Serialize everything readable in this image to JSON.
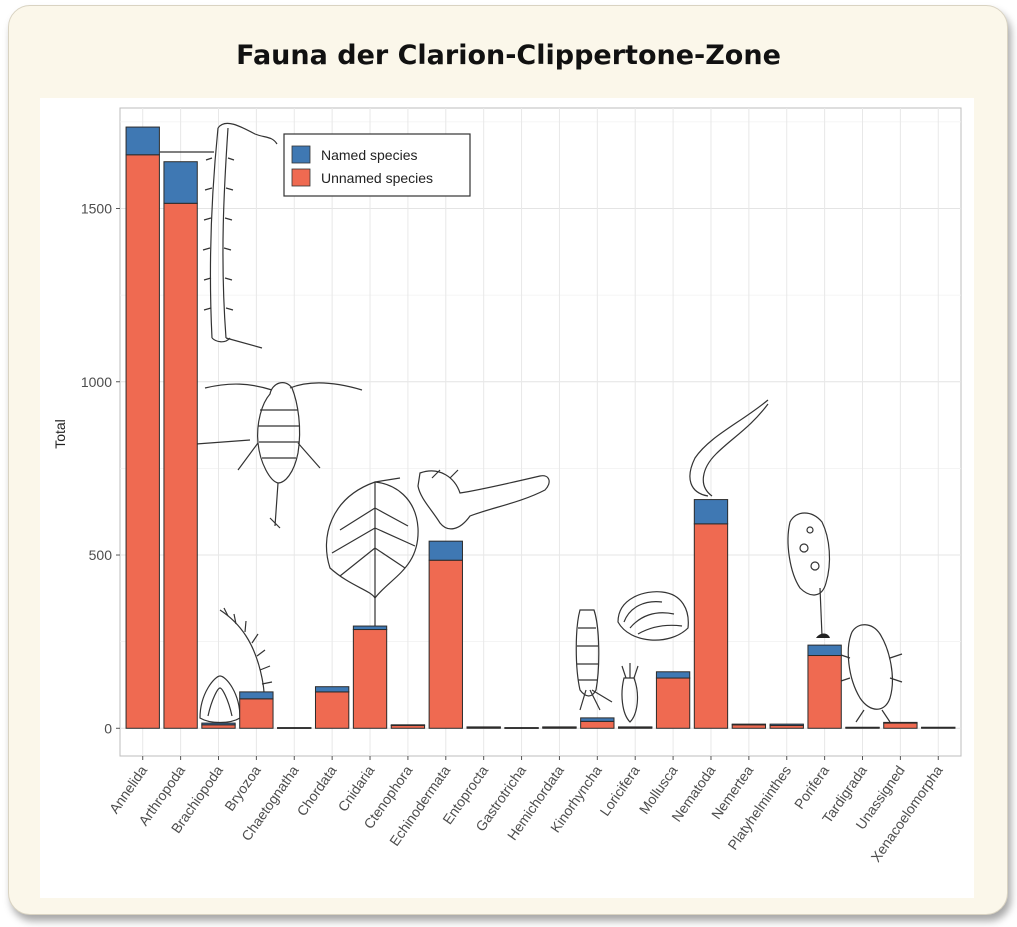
{
  "title": "Fauna der Clarion-Clippertone-Zone",
  "colors": {
    "named": "#3f78b3",
    "unnamed": "#ef6a51",
    "frame": "#fbf7ea"
  },
  "chart_data": {
    "type": "bar",
    "stacked": true,
    "categories": [
      "Annelida",
      "Arthropoda",
      "Brachiopoda",
      "Bryozoa",
      "Chaetognatha",
      "Chordata",
      "Cnidaria",
      "Ctenophora",
      "Echinodermata",
      "Entoprocta",
      "Gastrotricha",
      "Hemichordata",
      "Kinorhyncha",
      "Loricifera",
      "Mollusca",
      "Nematoda",
      "Nemertea",
      "Platyhelminthes",
      "Porifera",
      "Tardigrada",
      "Unassigned",
      "Xenacoelomorpha"
    ],
    "series": [
      {
        "name": "Unnamed species",
        "values": [
          1655,
          1515,
          10,
          85,
          1,
          105,
          285,
          8,
          485,
          3,
          1,
          3,
          20,
          3,
          145,
          590,
          10,
          8,
          210,
          2,
          15,
          2
        ]
      },
      {
        "name": "Named species",
        "values": [
          80,
          120,
          5,
          20,
          1,
          15,
          10,
          2,
          55,
          1,
          1,
          1,
          10,
          1,
          18,
          70,
          2,
          4,
          30,
          1,
          2,
          1
        ]
      }
    ],
    "ylabel": "Total",
    "xlabel": "",
    "yticks": [
      0,
      500,
      1000,
      1500
    ],
    "ylim": [
      -80,
      1790
    ],
    "grid": true,
    "legend": {
      "position": "top-left",
      "entries": [
        "Named species",
        "Unnamed species"
      ]
    }
  }
}
